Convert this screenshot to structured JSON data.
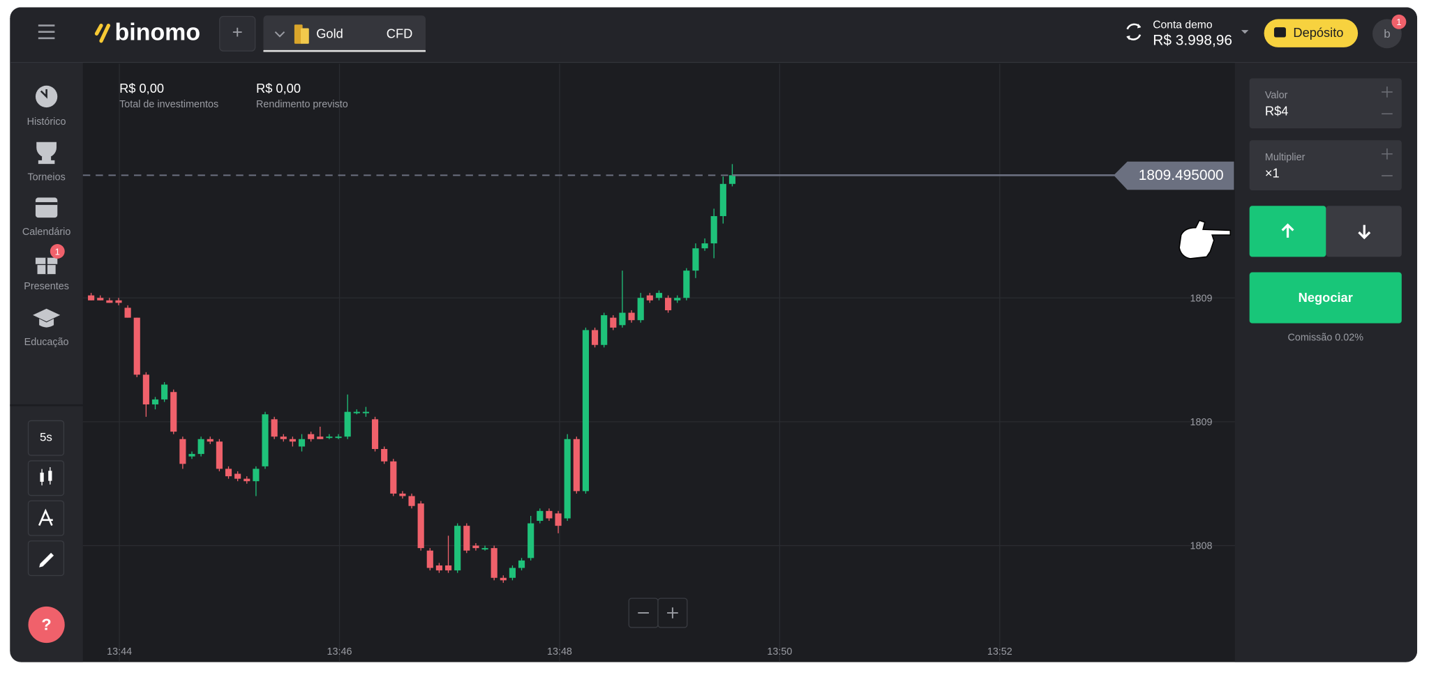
{
  "header": {
    "logo": "binomo",
    "asset": "Gold",
    "asset_type": "CFD",
    "account_label": "Conta demo",
    "balance": "R$ 3.998,96",
    "deposit_button": "Depósito",
    "avatar": "b",
    "notification_badge": "1"
  },
  "sidebar": {
    "items": [
      {
        "label": "Histórico"
      },
      {
        "label": "Torneios"
      },
      {
        "label": "Calendário"
      },
      {
        "label": "Presentes",
        "badge": "1"
      },
      {
        "label": "Educação"
      }
    ],
    "timeframe": "5s",
    "help": "?"
  },
  "summary": [
    {
      "amount": "R$ 0,00",
      "label": "Total de investimentos"
    },
    {
      "amount": "R$ 0,00",
      "label": "Rendimento previsto"
    }
  ],
  "chart_data": {
    "type": "candlestick",
    "open": [
      1809.01,
      1809.0,
      1808.99,
      1808.99,
      1808.96,
      1808.92,
      1808.69,
      1808.57,
      1808.59,
      1808.62,
      1808.43,
      1808.36,
      1808.37,
      1808.43,
      1808.42,
      1808.31,
      1808.29,
      1808.27,
      1808.26,
      1808.32,
      1808.51,
      1808.44,
      1808.43,
      1808.4,
      1808.45,
      1808.44,
      1808.44,
      1808.44,
      1808.44,
      1808.54,
      1808.54,
      1808.51,
      1808.39,
      1808.34,
      1808.21,
      1808.2,
      1808.17,
      1807.98,
      1807.92,
      1807.92,
      1807.9,
      1808.08,
      1808.0,
      1807.99,
      1807.99,
      1807.87,
      1807.87,
      1807.91,
      1807.95,
      1808.1,
      1808.14,
      1808.13,
      1808.11,
      1808.43,
      1808.22,
      1808.87,
      1808.81,
      1808.92,
      1808.89,
      1808.94,
      1808.91,
      1809.01,
      1809.0,
      1809.0,
      1808.99,
      1809.0,
      1809.11,
      1809.2,
      1809.22,
      1809.33,
      1809.46
    ],
    "high": [
      1809.02,
      1809.01,
      1809.0,
      1809.0,
      1808.97,
      1808.92,
      1808.7,
      1808.6,
      1808.66,
      1808.63,
      1808.44,
      1808.38,
      1808.44,
      1808.44,
      1808.43,
      1808.32,
      1808.3,
      1808.28,
      1808.32,
      1808.54,
      1808.52,
      1808.45,
      1808.44,
      1808.45,
      1808.46,
      1808.48,
      1808.45,
      1808.45,
      1808.61,
      1808.55,
      1808.56,
      1808.52,
      1808.4,
      1808.35,
      1808.22,
      1808.21,
      1808.18,
      1807.99,
      1807.93,
      1808.04,
      1808.09,
      1808.09,
      1808.01,
      1808.0,
      1808.0,
      1807.88,
      1807.92,
      1807.95,
      1808.12,
      1808.15,
      1808.15,
      1808.14,
      1808.45,
      1808.44,
      1808.88,
      1808.88,
      1808.94,
      1808.93,
      1809.11,
      1808.95,
      1809.02,
      1809.02,
      1809.03,
      1809.01,
      1809.01,
      1809.12,
      1809.22,
      1809.24,
      1809.36,
      1809.49,
      1809.54
    ],
    "low": [
      1808.99,
      1808.99,
      1808.98,
      1808.97,
      1808.92,
      1808.68,
      1808.52,
      1808.55,
      1808.58,
      1808.45,
      1808.31,
      1808.35,
      1808.36,
      1808.41,
      1808.3,
      1808.27,
      1808.26,
      1808.25,
      1808.2,
      1808.31,
      1808.43,
      1808.42,
      1808.4,
      1808.38,
      1808.42,
      1808.43,
      1808.43,
      1808.43,
      1808.43,
      1808.53,
      1808.52,
      1808.38,
      1808.33,
      1808.2,
      1808.19,
      1808.15,
      1807.98,
      1807.9,
      1807.89,
      1807.89,
      1807.89,
      1807.97,
      1807.98,
      1807.98,
      1807.86,
      1807.85,
      1807.86,
      1807.9,
      1807.94,
      1808.09,
      1808.1,
      1808.05,
      1808.1,
      1808.21,
      1808.21,
      1808.8,
      1808.8,
      1808.87,
      1808.88,
      1808.9,
      1808.9,
      1808.98,
      1808.99,
      1808.94,
      1808.98,
      1808.99,
      1809.08,
      1809.19,
      1809.16,
      1809.3,
      1809.45
    ],
    "close": [
      1808.99,
      1808.99,
      1808.98,
      1808.98,
      1808.92,
      1808.69,
      1808.57,
      1808.59,
      1808.65,
      1808.46,
      1808.33,
      1808.37,
      1808.43,
      1808.42,
      1808.31,
      1808.28,
      1808.27,
      1808.26,
      1808.31,
      1808.53,
      1808.44,
      1808.43,
      1808.42,
      1808.43,
      1808.43,
      1808.43,
      1808.44,
      1808.44,
      1808.54,
      1808.54,
      1808.54,
      1808.39,
      1808.34,
      1808.21,
      1808.2,
      1808.16,
      1807.99,
      1807.91,
      1807.9,
      1807.9,
      1808.08,
      1807.98,
      1807.99,
      1807.99,
      1807.87,
      1807.86,
      1807.91,
      1807.94,
      1808.09,
      1808.14,
      1808.11,
      1808.08,
      1808.43,
      1808.22,
      1808.87,
      1808.81,
      1808.93,
      1808.88,
      1808.94,
      1808.91,
      1809.0,
      1808.99,
      1809.02,
      1808.95,
      1809.0,
      1809.11,
      1809.2,
      1809.22,
      1809.33,
      1809.46,
      1809.495
    ],
    "up_color": "#1fc27a",
    "down_color": "#f0616b",
    "ylim": [
      1807.53,
      1809.945
    ],
    "yticks": [
      {
        "value": 1809.0,
        "label": "1809"
      },
      {
        "value": 1808.5,
        "label": "1809"
      },
      {
        "value": 1808.0,
        "label": "1808"
      }
    ],
    "xticks": [
      "13:44",
      "13:46",
      "13:48",
      "13:50",
      "13:52"
    ],
    "current_price": {
      "value": 1809.495,
      "label": "1809.495000"
    },
    "grid": true
  },
  "trade_panel": {
    "amount_label": "Valor",
    "amount": "R$4",
    "multiplier_label": "Multiplier",
    "multiplier": "×1",
    "trade_button": "Negociar",
    "commission": "Comissão 0.02%"
  }
}
